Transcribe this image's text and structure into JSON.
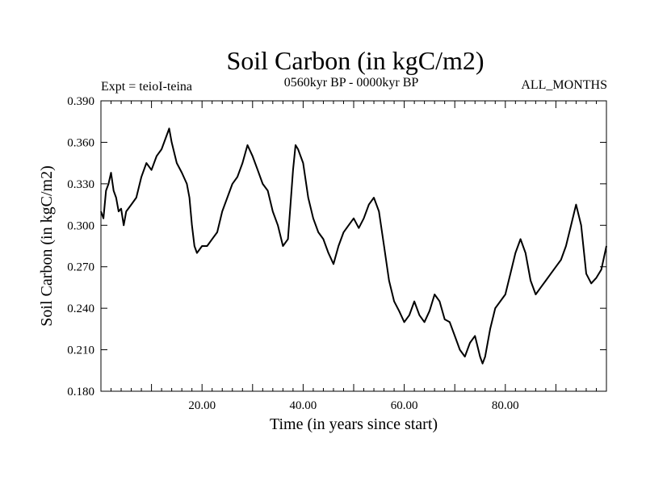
{
  "chart_data": {
    "type": "line",
    "title": "Soil Carbon (in kgC/m2)",
    "subtitle_left": "Expt = teioI-teina",
    "subtitle_center": "0560kyr BP - 0000kyr BP",
    "subtitle_right": "ALL_MONTHS",
    "xlabel": "Time (in years since start)",
    "ylabel": "Soil Carbon (in kgC/m2)",
    "xlim": [
      0,
      100
    ],
    "ylim": [
      0.18,
      0.39
    ],
    "x_ticks": [
      20,
      40,
      60,
      80
    ],
    "x_tick_labels": [
      "20.00",
      "40.00",
      "60.00",
      "80.00"
    ],
    "y_ticks": [
      0.18,
      0.21,
      0.24,
      0.27,
      0.3,
      0.33,
      0.36,
      0.39
    ],
    "y_tick_labels": [
      "0.180",
      "0.210",
      "0.240",
      "0.270",
      "0.300",
      "0.330",
      "0.360",
      "0.390"
    ],
    "series": [
      {
        "name": "Soil Carbon",
        "color": "#000000",
        "x": [
          0,
          0.5,
          1,
          1.5,
          2,
          2.5,
          3,
          3.5,
          4,
          4.5,
          5,
          6,
          7,
          8,
          9,
          10,
          11,
          12,
          13,
          13.5,
          14,
          15,
          16,
          17,
          17.5,
          18,
          18.5,
          19,
          20,
          21,
          22,
          23,
          24,
          25,
          26,
          27,
          28,
          29,
          30,
          31,
          32,
          33,
          34,
          35,
          36,
          37,
          38,
          38.5,
          39,
          40,
          41,
          42,
          43,
          44,
          45,
          46,
          47,
          48,
          49,
          50,
          51,
          52,
          53,
          54,
          55,
          56,
          57,
          58,
          59,
          60,
          61,
          62,
          63,
          64,
          65,
          66,
          67,
          68,
          69,
          70,
          71,
          72,
          73,
          74,
          75,
          75.5,
          76,
          77,
          78,
          79,
          80,
          81,
          82,
          83,
          84,
          85,
          86,
          87,
          88,
          89,
          90,
          91,
          92,
          93,
          94,
          95,
          96,
          97,
          98,
          99,
          100
        ],
        "y": [
          0.31,
          0.305,
          0.325,
          0.33,
          0.338,
          0.325,
          0.32,
          0.31,
          0.312,
          0.3,
          0.31,
          0.315,
          0.32,
          0.335,
          0.345,
          0.34,
          0.35,
          0.355,
          0.365,
          0.37,
          0.36,
          0.345,
          0.338,
          0.33,
          0.32,
          0.3,
          0.285,
          0.28,
          0.285,
          0.285,
          0.29,
          0.295,
          0.31,
          0.32,
          0.33,
          0.335,
          0.345,
          0.358,
          0.35,
          0.34,
          0.33,
          0.325,
          0.31,
          0.3,
          0.285,
          0.29,
          0.34,
          0.358,
          0.355,
          0.345,
          0.32,
          0.305,
          0.295,
          0.29,
          0.28,
          0.272,
          0.285,
          0.295,
          0.3,
          0.305,
          0.298,
          0.305,
          0.315,
          0.32,
          0.31,
          0.285,
          0.26,
          0.245,
          0.238,
          0.23,
          0.235,
          0.245,
          0.235,
          0.23,
          0.238,
          0.25,
          0.245,
          0.232,
          0.23,
          0.22,
          0.21,
          0.205,
          0.215,
          0.22,
          0.205,
          0.2,
          0.205,
          0.225,
          0.24,
          0.245,
          0.25,
          0.265,
          0.28,
          0.29,
          0.28,
          0.26,
          0.25,
          0.255,
          0.26,
          0.265,
          0.27,
          0.275,
          0.285,
          0.3,
          0.315,
          0.3,
          0.265,
          0.258,
          0.262,
          0.268,
          0.285
        ]
      }
    ]
  }
}
